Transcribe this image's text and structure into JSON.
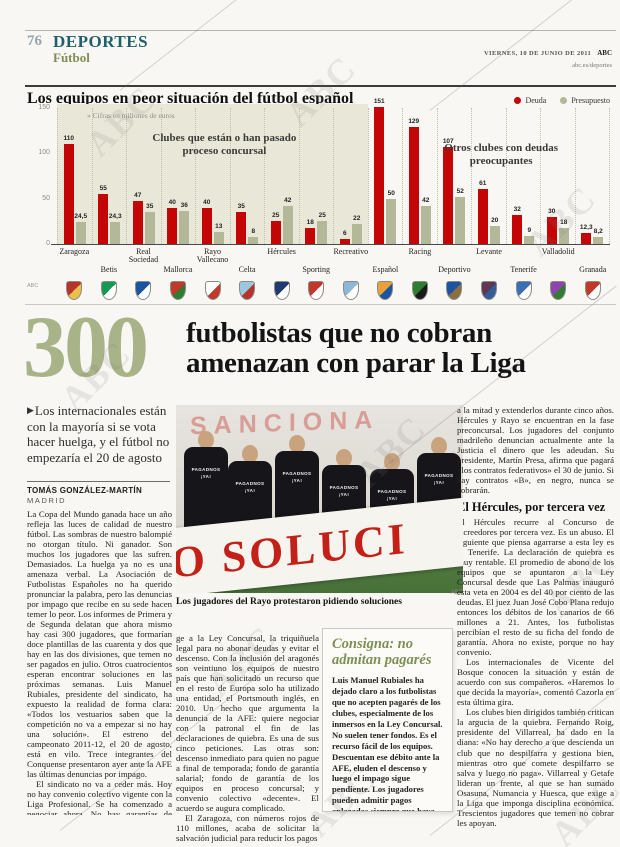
{
  "header": {
    "page_number": "76",
    "section": "DEPORTES",
    "subsection": "Fútbol",
    "date": "VIERNES, 10 DE JUNIO DE 2011",
    "brand": "ABC",
    "site": "abc.es/deportes"
  },
  "icons": {
    "deck_arrow": "▶",
    "legend_bullet": "●"
  },
  "chart_data": {
    "type": "bar",
    "title": "Los equipos en peor situación del fútbol español",
    "note": "» Cifras en millones de euros",
    "ylim": [
      0,
      150
    ],
    "yticks": [
      150,
      100,
      50,
      0
    ],
    "grid": "vertical-dotted",
    "legend_position": "top-right",
    "legend": [
      {
        "label": "Deuda",
        "color": "#c40505"
      },
      {
        "label": "Presupuesto",
        "color": "#b3b998"
      }
    ],
    "annotations": {
      "concursal": "Clubes que están o han pasado proceso concursal",
      "otros": "Otros clubes con deudas preocupantes"
    },
    "source": "ABC",
    "series_names": [
      "Deuda",
      "Presupuesto"
    ],
    "teams": [
      {
        "name": "Zaragoza",
        "deuda": 110,
        "presupuesto": 24.5,
        "deuda_label": "110",
        "presupuesto_label": "24,5",
        "group": "concursal",
        "label_row": "upper",
        "crest": [
          "#b5342c",
          "#e8c04a"
        ]
      },
      {
        "name": "Betis",
        "deuda": 55,
        "presupuesto": 24.3,
        "deuda_label": "55",
        "presupuesto_label": "24,3",
        "group": "concursal",
        "label_row": "lower",
        "crest": [
          "#159b51",
          "#ffffff"
        ]
      },
      {
        "name": "Real Sociedad",
        "deuda": 47,
        "presupuesto": 35,
        "deuda_label": "47",
        "presupuesto_label": "35",
        "group": "concursal",
        "label_row": "upper",
        "crest": [
          "#1b54a3",
          "#ffffff"
        ]
      },
      {
        "name": "Mallorca",
        "deuda": 40,
        "presupuesto": 36,
        "deuda_label": "40",
        "presupuesto_label": "36",
        "group": "concursal",
        "label_row": "lower",
        "crest": [
          "#c0392b",
          "#2e7d32"
        ]
      },
      {
        "name": "Rayo Vallecano",
        "deuda": 40,
        "presupuesto": 13,
        "deuda_label": "40",
        "presupuesto_label": "13",
        "group": "concursal",
        "label_row": "upper",
        "crest": [
          "#ffffff",
          "#c0392b"
        ]
      },
      {
        "name": "Celta",
        "deuda": 35,
        "presupuesto": 8,
        "deuda_label": "35",
        "presupuesto_label": "8",
        "group": "concursal",
        "label_row": "lower",
        "crest": [
          "#9cc7e0",
          "#b5342c"
        ]
      },
      {
        "name": "Hércules",
        "deuda": 25,
        "presupuesto": 42,
        "deuda_label": "25",
        "presupuesto_label": "42",
        "group": "concursal",
        "label_row": "upper",
        "crest": [
          "#1f3a6e",
          "#ffffff"
        ]
      },
      {
        "name": "Sporting",
        "deuda": 18,
        "presupuesto": 25,
        "deuda_label": "18",
        "presupuesto_label": "25",
        "group": "concursal",
        "label_row": "lower",
        "crest": [
          "#c0392b",
          "#ffffff"
        ]
      },
      {
        "name": "Recreativo",
        "deuda": 6,
        "presupuesto": 22,
        "deuda_label": "6",
        "presupuesto_label": "22",
        "group": "concursal",
        "label_row": "upper",
        "crest": [
          "#8fb8d8",
          "#ffffff"
        ]
      },
      {
        "name": "Español",
        "deuda": 151,
        "presupuesto": 50,
        "deuda_label": "151",
        "presupuesto_label": "50",
        "group": "otros",
        "label_row": "lower",
        "crest": [
          "#e8a13a",
          "#1b54a3"
        ]
      },
      {
        "name": "Racing",
        "deuda": 129,
        "presupuesto": 42,
        "deuda_label": "129",
        "presupuesto_label": "42",
        "group": "otros",
        "label_row": "upper",
        "crest": [
          "#2e7d32",
          "#1a1a1a"
        ]
      },
      {
        "name": "Deportivo",
        "deuda": 107,
        "presupuesto": 52,
        "deuda_label": "107",
        "presupuesto_label": "52",
        "group": "otros",
        "label_row": "lower",
        "crest": [
          "#1b54a3",
          "#8d6e3f"
        ]
      },
      {
        "name": "Levante",
        "deuda": 61,
        "presupuesto": 20,
        "deuda_label": "61",
        "presupuesto_label": "20",
        "group": "otros",
        "label_row": "upper",
        "crest": [
          "#5d3754",
          "#355c9a"
        ]
      },
      {
        "name": "Tenerife",
        "deuda": 32,
        "presupuesto": 9,
        "deuda_label": "32",
        "presupuesto_label": "9",
        "group": "otros",
        "label_row": "lower",
        "crest": [
          "#3a6fb5",
          "#ffffff"
        ]
      },
      {
        "name": "Valladolid",
        "deuda": 30,
        "presupuesto": 18,
        "deuda_label": "30",
        "presupuesto_label": "18",
        "group": "otros",
        "label_row": "upper",
        "crest": [
          "#8e44ad",
          "#2e7d32"
        ]
      },
      {
        "name": "Granada",
        "deuda": 12.3,
        "presupuesto": 8.2,
        "deuda_label": "12,3",
        "presupuesto_label": "8,2",
        "group": "otros",
        "label_row": "lower",
        "crest": [
          "#c0392b",
          "#ffffff"
        ]
      }
    ]
  },
  "headline": {
    "number": "300",
    "line1": "futbolistas que no cobran",
    "line2": "amenazan con parar la Liga"
  },
  "deck": "Los internacionales están con la mayoría si se vota hacer huelga, y el fútbol no empezaría el 20 de agosto",
  "byline": {
    "author": "TOMÁS GONZÁLEZ-MARTÍN",
    "place": "MADRID"
  },
  "photo": {
    "caption": "Los jugadores del Rayo protestaron pidiendo soluciones",
    "credit": "ABC",
    "banner_text": "O SOLUCI",
    "background_text": "SANCIONA",
    "shirt_lines": [
      "PAGADNOS",
      "¡YA!"
    ]
  },
  "article": {
    "col1": {
      "p1": "La Copa del Mundo ganada hace un año refleja las luces de calidad de nuestro fútbol. Las sombras de nuestro balompié no otorgan título. Ni ganador. Son muchos los jugadores que las sufren. Demasiados. La huelga ya no es una amenaza verbal. La Asociación de Futbolistas Españoles no ha querido pronunciar la palabra, pero las denuncias por impago que recibe en su sede hacen temer lo peor. Los informes de Primera y de Segunda delatan que ahora mismo hay casi 300 jugadores, que formarían doce plantillas de las cuarenta y dos que hay en las dos divisiones, que temen no ser pagados en julio. Otros cuatrocientos esperan encontrar soluciones en las próximas semanas. Luis Manuel Rubiales, presidente del sindicato, ha expuesto la realidad de forma clara: «Todos los vestuarios saben que la competición no va a empezar si no hay una solución». El estreno del campeonato 2011-12, el 20 de agosto, está en vilo. Trece integrantes del Conquense presentaron ayer ante la AFE las últimas denuncias por impago.",
      "p2": "El sindicato no va a ceder más. Hoy no hay convenio colectivo vigente con la Liga Profesional. Se ha comenzado a negociar ahora. No hay garantías de cobro. Y el Zaragoza es el sexto club que esta temporada se aco-"
    },
    "col2": {
      "p1": "ge a la Ley Concursal, la triquiñuela legal para no abonar deudas y evitar el descenso. Con la inclusión del aragonés son veintiuno los equipos de nuestro país que han solicitado un recurso que en el resto de Europa solo ha utilizado una entidad, el Portsmouth inglés, en 2010. Un hecho que argumenta la denuncia de la AFE: quiere negociar con la patronal el fin de las declaraciones de quiebra. Es una de sus cinco peticiones. Las otras son: descenso inmediato para quien no pague a final de temporada; fondo de garantía salarial; fondo de garantía de los equipos en proceso concursal; y convenio colectivo «decente». El acuerdo se augura complicado.",
      "p2": "El Zaragoza, con números rojos de 110 millones, acaba de solicitar la salvación judicial para reducir los pagos"
    },
    "col4": {
      "p1": "a la mitad y extenderlos durante cinco años. Hércules y Rayo se encuentran en la fase preconcursal. Los jugadores del conjunto madrileño denuncian actualmente ante la Justicia el dinero que les adeudan. Su presidente, Martín Presa, afirma que pagará «los contratos federativos» el 30 de junio. Si hay contratos «B», en negro, nunca se cobrarán.",
      "subhead": "El Hércules, por tercera vez",
      "p2": "El Hércules recurre al Concurso de Acreedores por tercera vez. Es un abuso. El siguiente que piensa agarrarse a esta ley es el Tenerife. La declaración de quiebra es muy rentable. El promedio de abono de los equipos que se apuntaron a la Ley Concursal desde que Las Palmas inauguró esta veta en 2004 es del 40 por ciento de las deudas. El juez Juan José Cobo Plana redujo entonces los débitos de los canarios de 66 millones a 21. Antes, los futbolistas percibían el resto de su ficha del fondo de garantía. Ahora no existe, porque no hay convenio.",
      "p3": "Los internacionales de Vicente del Bosque conocen la situación y están de acuerdo con sus compañeros. «Haremos lo que decida la mayoría», comentó Cazorla en esta última gira.",
      "p4": "Los clubes bien dirigidos también critican la argucia de la quiebra. Fernando Roig, presidente del Villarreal, ha dado en la diana: «No hay derecho a que descienda un club que no despilfarra y gestiona bien, mientras otro que comete despilfarro se salva y luego no paga». Villarreal y Getafe lideran un frente, al que se han sumado Osasuna, Numancia y Huesca, que exige a la Liga que imponga disciplina económica. Trescientos jugadores que temen no cobrar les apoyan."
    }
  },
  "pullquote": {
    "quote": "Consigna: no admitan pagarés",
    "text": "Luis Manuel Rubiales ha dejado claro a los futbolistas que no acepten pagarés de los clubes, especialmente de los inmersos en la Ley Concursal. No suelen tener fondos. Es el recurso fácil de los equipos. Descuentan ese débito ante la AFE, eluden el descenso y luego el impago sigue pendiente. Los jugadores pueden admitir pagos aplazados siempre que haya seguridad de cobro. Avales. Son la clave.",
    "accent_color": "#7d8f56"
  }
}
